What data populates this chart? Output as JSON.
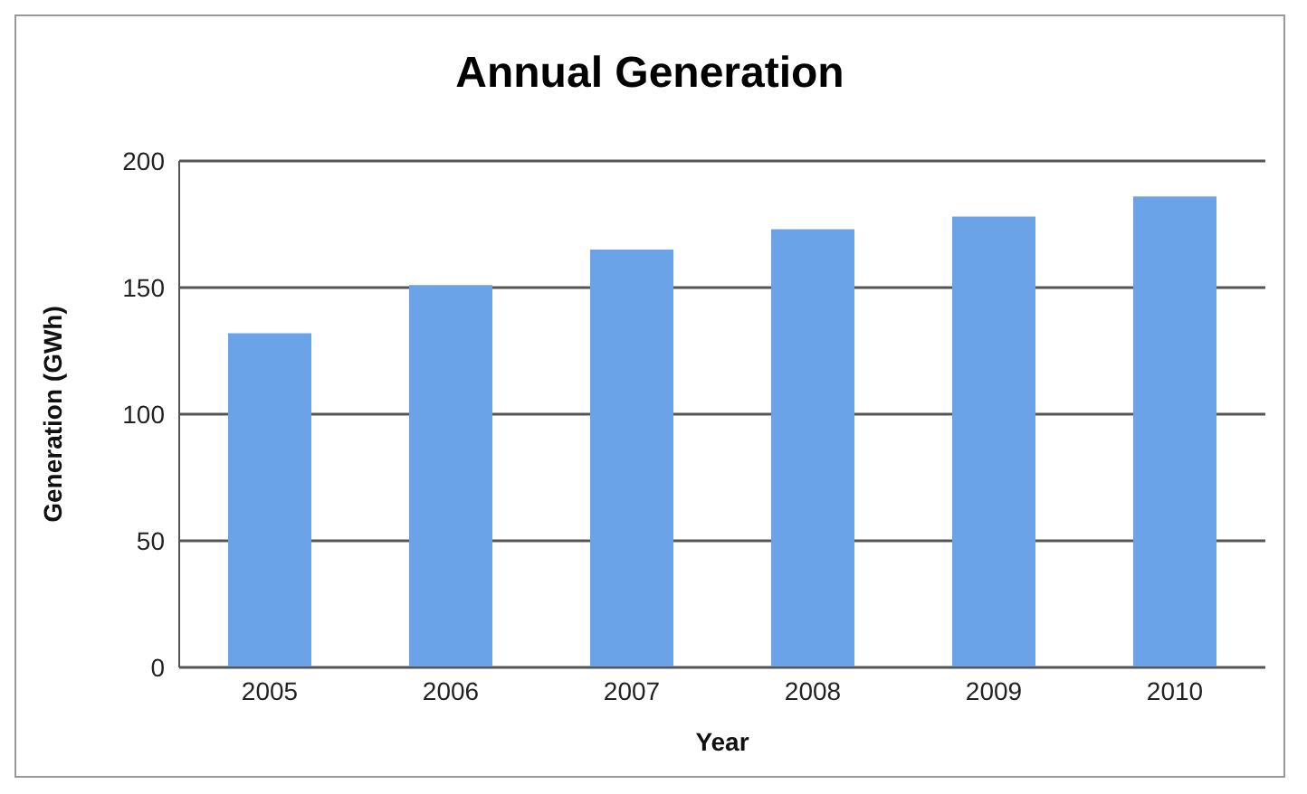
{
  "chart_data": {
    "type": "bar",
    "title": "Annual Generation",
    "xlabel": "Year",
    "ylabel": "Generation (GWh)",
    "categories": [
      "2005",
      "2006",
      "2007",
      "2008",
      "2009",
      "2010"
    ],
    "values": [
      132,
      151,
      165,
      173,
      178,
      186
    ],
    "color": "#6aa3e8",
    "ylim": [
      0,
      200
    ],
    "yticks": [
      0,
      50,
      100,
      150,
      200
    ],
    "grid": "y"
  }
}
